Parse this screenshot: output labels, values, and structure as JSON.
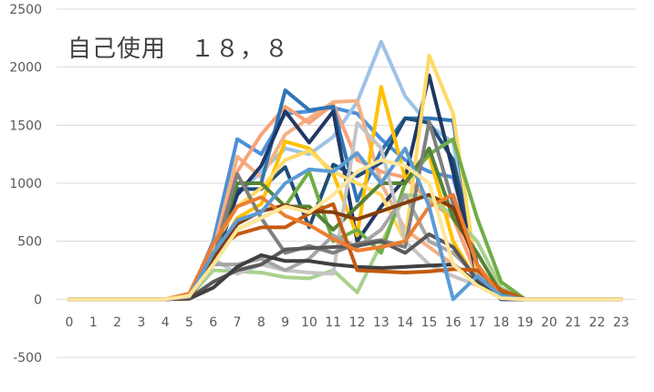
{
  "chart_data": {
    "type": "line",
    "title": "自己使用　１８，８",
    "xlabel": "",
    "ylabel": "",
    "categories": [
      "0",
      "1",
      "2",
      "3",
      "4",
      "5",
      "6",
      "7",
      "8",
      "9",
      "10",
      "11",
      "12",
      "13",
      "14",
      "15",
      "16",
      "17",
      "18",
      "19",
      "20",
      "21",
      "22",
      "23"
    ],
    "yticks": [
      "-500",
      "0",
      "500",
      "1000",
      "1500",
      "2000",
      "2500"
    ],
    "ylim": [
      -500,
      2500
    ],
    "grid": true,
    "legend": "none",
    "series": [
      {
        "color": "#4a90d9",
        "values": [
          0,
          0,
          0,
          0,
          0,
          20,
          500,
          1380,
          1250,
          1600,
          1620,
          1650,
          1600,
          1380,
          1200,
          1100,
          1050,
          300,
          20,
          0,
          0,
          0,
          0,
          0
        ]
      },
      {
        "color": "#9dc3e6",
        "values": [
          0,
          0,
          0,
          0,
          0,
          10,
          350,
          900,
          1100,
          1300,
          1250,
          1400,
          1700,
          2220,
          1750,
          1500,
          1350,
          250,
          10,
          0,
          0,
          0,
          0,
          0
        ]
      },
      {
        "color": "#f4b183",
        "values": [
          0,
          0,
          0,
          0,
          0,
          30,
          420,
          1230,
          1050,
          1420,
          1560,
          1700,
          1710,
          1000,
          600,
          450,
          300,
          150,
          10,
          0,
          0,
          0,
          0,
          0
        ]
      },
      {
        "color": "#f8a27a",
        "values": [
          0,
          0,
          0,
          0,
          0,
          20,
          400,
          1100,
          1420,
          1660,
          1520,
          1680,
          1200,
          1100,
          1050,
          850,
          700,
          200,
          10,
          0,
          0,
          0,
          0,
          0
        ]
      },
      {
        "color": "#2e75b6",
        "values": [
          0,
          0,
          0,
          0,
          0,
          15,
          380,
          1000,
          1000,
          1800,
          1630,
          1660,
          850,
          1280,
          1560,
          1560,
          1540,
          200,
          10,
          0,
          0,
          0,
          0,
          0
        ]
      },
      {
        "color": "#1f4e79",
        "values": [
          0,
          0,
          0,
          0,
          0,
          10,
          330,
          950,
          950,
          1140,
          620,
          1160,
          1060,
          1180,
          1560,
          1520,
          1200,
          300,
          0,
          0,
          0,
          0,
          0,
          0
        ]
      },
      {
        "color": "#203864",
        "values": [
          0,
          0,
          0,
          0,
          0,
          10,
          300,
          900,
          1150,
          1620,
          1350,
          1620,
          500,
          800,
          1040,
          1930,
          1100,
          200,
          0,
          0,
          0,
          0,
          0,
          0
        ]
      },
      {
        "color": "#ffc000",
        "values": [
          0,
          0,
          0,
          0,
          0,
          30,
          350,
          700,
          820,
          1360,
          1300,
          1080,
          550,
          1830,
          1040,
          1240,
          500,
          150,
          10,
          0,
          0,
          0,
          0,
          0
        ]
      },
      {
        "color": "#ffd966",
        "values": [
          0,
          0,
          0,
          0,
          0,
          40,
          450,
          800,
          960,
          1200,
          1280,
          1100,
          1000,
          900,
          500,
          2100,
          1600,
          200,
          10,
          0,
          0,
          0,
          0,
          0
        ]
      },
      {
        "color": "#a9d18e",
        "values": [
          0,
          0,
          0,
          0,
          0,
          20,
          250,
          240,
          230,
          190,
          180,
          250,
          60,
          480,
          900,
          880,
          720,
          500,
          100,
          0,
          0,
          0,
          0,
          0
        ]
      },
      {
        "color": "#70ad47",
        "values": [
          0,
          0,
          0,
          0,
          0,
          20,
          300,
          600,
          700,
          800,
          1100,
          500,
          600,
          400,
          1000,
          1250,
          1380,
          700,
          150,
          0,
          0,
          0,
          0,
          0
        ]
      },
      {
        "color": "#548235",
        "values": [
          0,
          0,
          0,
          0,
          0,
          10,
          350,
          1000,
          1000,
          800,
          800,
          600,
          800,
          1000,
          1000,
          1300,
          700,
          400,
          50,
          0,
          0,
          0,
          0,
          0
        ]
      },
      {
        "color": "#c5c5c5",
        "values": [
          0,
          0,
          0,
          0,
          0,
          30,
          350,
          220,
          300,
          250,
          230,
          220,
          1520,
          1300,
          500,
          300,
          200,
          120,
          10,
          0,
          0,
          0,
          0,
          0
        ]
      },
      {
        "color": "#a5a5a5",
        "values": [
          0,
          0,
          0,
          0,
          0,
          20,
          300,
          300,
          350,
          250,
          350,
          550,
          450,
          600,
          900,
          500,
          400,
          200,
          10,
          0,
          0,
          0,
          0,
          0
        ]
      },
      {
        "color": "#7f7f7f",
        "values": [
          0,
          0,
          0,
          0,
          0,
          20,
          350,
          1080,
          700,
          400,
          460,
          400,
          480,
          510,
          450,
          1530,
          820,
          300,
          20,
          0,
          0,
          0,
          0,
          0
        ]
      },
      {
        "color": "#595959",
        "values": [
          0,
          0,
          0,
          0,
          0,
          10,
          150,
          250,
          300,
          430,
          440,
          450,
          460,
          500,
          400,
          560,
          450,
          160,
          10,
          0,
          0,
          0,
          0,
          0
        ]
      },
      {
        "color": "#404040",
        "values": [
          0,
          0,
          0,
          0,
          0,
          5,
          100,
          280,
          380,
          330,
          330,
          300,
          280,
          270,
          280,
          290,
          300,
          140,
          10,
          0,
          0,
          0,
          0,
          0
        ]
      },
      {
        "color": "#c55a11",
        "values": [
          0,
          0,
          0,
          0,
          0,
          20,
          400,
          560,
          620,
          620,
          740,
          820,
          250,
          240,
          230,
          240,
          260,
          250,
          80,
          0,
          0,
          0,
          0,
          0
        ]
      },
      {
        "color": "#843c0c",
        "values": [
          0,
          0,
          0,
          0,
          0,
          10,
          350,
          650,
          760,
          810,
          760,
          750,
          690,
          760,
          830,
          900,
          790,
          300,
          20,
          0,
          0,
          0,
          0,
          0
        ]
      },
      {
        "color": "#ed7d31",
        "values": [
          0,
          0,
          0,
          0,
          0,
          50,
          480,
          800,
          880,
          720,
          640,
          520,
          420,
          450,
          500,
          800,
          900,
          300,
          20,
          0,
          0,
          0,
          0,
          0
        ]
      },
      {
        "color": "#5b9bd5",
        "values": [
          0,
          0,
          0,
          0,
          0,
          20,
          400,
          680,
          750,
          1000,
          1120,
          1100,
          1260,
          1000,
          1300,
          800,
          0,
          200,
          30,
          0,
          0,
          0,
          0,
          0
        ]
      },
      {
        "color": "#ffe699",
        "values": [
          0,
          0,
          0,
          0,
          0,
          30,
          300,
          600,
          700,
          800,
          750,
          900,
          1100,
          1200,
          1150,
          1000,
          300,
          120,
          10,
          0,
          0,
          0,
          0,
          0
        ]
      }
    ]
  }
}
